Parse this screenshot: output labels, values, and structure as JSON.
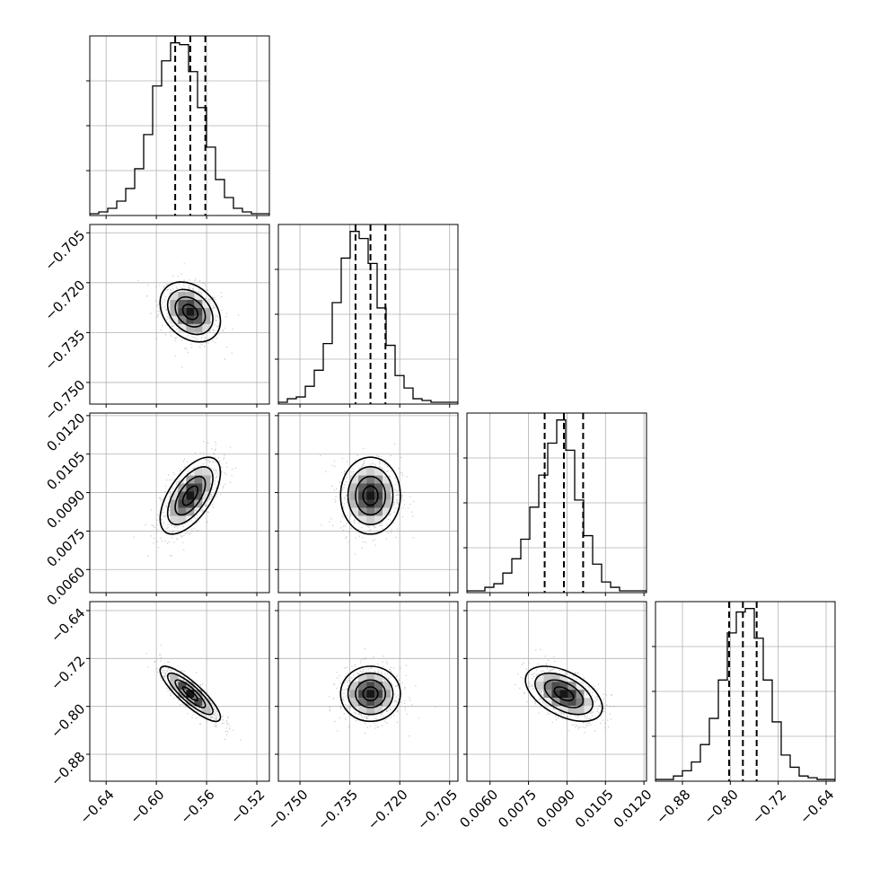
{
  "chart_data": {
    "type": "corner",
    "parameters": [
      {
        "index": 0,
        "ticks": [
          -0.64,
          -0.6,
          -0.56,
          -0.52
        ],
        "tick_labels": [
          "−0.64",
          "−0.60",
          "−0.56",
          "−0.52"
        ],
        "range": [
          -0.653,
          -0.51
        ],
        "mean": -0.573,
        "sigma": 0.012,
        "quantiles": {
          "q16": -0.585,
          "q50": -0.573,
          "q84": -0.561
        }
      },
      {
        "index": 1,
        "ticks": [
          -0.75,
          -0.735,
          -0.72,
          -0.705
        ],
        "tick_labels": [
          "−0.750",
          "−0.735",
          "−0.720",
          "−0.705"
        ],
        "range": [
          -0.7565,
          -0.7025
        ],
        "mean": -0.7288,
        "sigma": 0.0045,
        "quantiles": {
          "q16": -0.7333,
          "q50": -0.7288,
          "q84": -0.7243
        }
      },
      {
        "index": 2,
        "ticks": [
          0.006,
          0.0075,
          0.009,
          0.0105,
          0.012
        ],
        "tick_labels": [
          "0.0060",
          "0.0075",
          "0.0090",
          "0.0105",
          "0.0120"
        ],
        "range": [
          0.0051,
          0.0121
        ],
        "mean": 0.00888,
        "sigma": 0.00075,
        "quantiles": {
          "q16": 0.00813,
          "q50": 0.00888,
          "q84": 0.00963
        }
      },
      {
        "index": 3,
        "ticks": [
          -0.88,
          -0.8,
          -0.72,
          -0.64
        ],
        "tick_labels": [
          "−0.88",
          "−0.80",
          "−0.72",
          "−0.64"
        ],
        "range": [
          -0.925,
          -0.625
        ],
        "mean": -0.779,
        "sigma": 0.023,
        "quantiles": {
          "q16": -0.802,
          "q50": -0.779,
          "q84": -0.756
        }
      }
    ],
    "histograms": [
      {
        "param": 0,
        "counts": [
          1,
          2,
          4,
          8,
          15,
          26,
          45,
          72,
          86,
          96,
          95,
          80,
          60,
          38,
          20,
          10,
          4,
          2,
          1,
          1
        ]
      },
      {
        "param": 1,
        "counts": [
          1,
          3,
          4,
          10,
          19,
          34,
          57,
          82,
          97,
          93,
          79,
          54,
          33,
          16,
          9,
          3,
          2,
          1,
          1,
          1
        ]
      },
      {
        "param": 2,
        "counts": [
          1,
          1,
          3,
          5,
          11,
          19,
          30,
          48,
          66,
          84,
          97,
          80,
          52,
          32,
          16,
          6,
          3,
          1,
          1,
          1
        ]
      },
      {
        "param": 3,
        "counts": [
          1,
          1,
          3,
          6,
          11,
          21,
          36,
          58,
          85,
          97,
          99,
          82,
          58,
          34,
          15,
          8,
          3,
          2,
          1,
          1
        ]
      }
    ],
    "correlations": [
      {
        "x": 0,
        "y": 1,
        "rho": -0.3
      },
      {
        "x": 0,
        "y": 2,
        "rho": 0.6
      },
      {
        "x": 1,
        "y": 2,
        "rho": 0.0
      },
      {
        "x": 0,
        "y": 3,
        "rho": -0.85
      },
      {
        "x": 1,
        "y": 3,
        "rho": 0.0
      },
      {
        "x": 2,
        "y": 3,
        "rho": -0.5
      }
    ],
    "contour_levels_sigma": [
      0.5,
      1.0,
      1.5,
      2.0
    ],
    "grid": true,
    "colors": {
      "line": "#000000",
      "scatter": "#9a9a9a",
      "grid": "#b0b0b0"
    }
  }
}
